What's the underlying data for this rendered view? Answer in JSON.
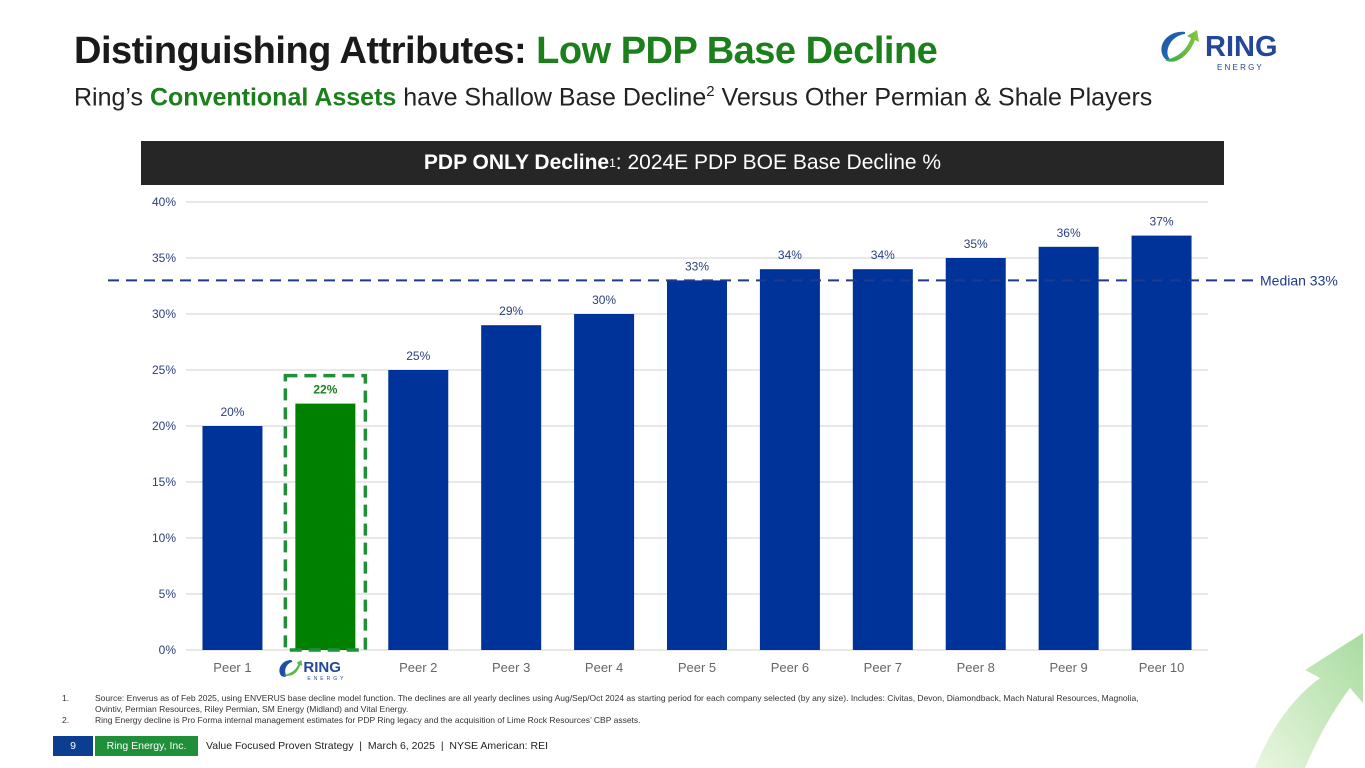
{
  "header": {
    "title_prefix": "Distinguishing Attributes: ",
    "title_accent": "Low PDP Base Decline",
    "subtitle_prefix": "Ring’s ",
    "subtitle_accent": "Conventional Assets",
    "subtitle_suffix": " have Shallow Base Decline",
    "subtitle_sup": "2",
    "subtitle_end": " Versus Other Permian & Shale Players",
    "logo": {
      "name": "RING",
      "tagline": "E N E R G Y"
    }
  },
  "chart_header": {
    "bold": "PDP ONLY Decline",
    "sup": "1",
    "rest": ": 2024E PDP BOE Base Decline %"
  },
  "chart_data": {
    "type": "bar",
    "title": "PDP ONLY Decline: 2024E PDP BOE Base Decline %",
    "categories": [
      "Peer 1",
      "Ring Energy",
      "Peer 2",
      "Peer 3",
      "Peer 4",
      "Peer 5",
      "Peer 6",
      "Peer 7",
      "Peer 8",
      "Peer 9",
      "Peer 10"
    ],
    "values": [
      20,
      22,
      25,
      29,
      30,
      33,
      34,
      34,
      35,
      36,
      37
    ],
    "data_labels": [
      "20%",
      "22%",
      "25%",
      "29%",
      "30%",
      "33%",
      "34%",
      "34%",
      "35%",
      "36%",
      "37%"
    ],
    "highlight_index": 1,
    "ylim": [
      0,
      40
    ],
    "yticks": [
      0,
      5,
      10,
      15,
      20,
      25,
      30,
      35,
      40
    ],
    "ytick_labels": [
      "0%",
      "5%",
      "10%",
      "15%",
      "20%",
      "25%",
      "30%",
      "35%",
      "40%"
    ],
    "xlabel": "",
    "ylabel": "",
    "grid": true,
    "reference_line": {
      "value": 33,
      "label": "Median 33%"
    },
    "colors": {
      "bar": "#003399",
      "highlight": "#008000",
      "median": "#1f3a8a",
      "label": "#2b3f7e"
    }
  },
  "footnotes": [
    {
      "num": "1.",
      "text": "Source: Enverus as of Feb 2025, using ENVERUS base decline model function. The declines are all yearly declines using Aug/Sep/Oct 2024 as starting period for each company selected (by any size). Includes: Civitas, Devon, Diamondback, Mach Natural Resources, Magnolia, Ovintiv, Permian Resources, Riley Permian, SM Energy (Midland) and Vital Energy."
    },
    {
      "num": "2.",
      "text": "Ring Energy decline is Pro Forma internal management estimates for PDP Ring legacy and the acquisition of Lime Rock Resources’ CBP assets."
    }
  ],
  "footer": {
    "page": "9",
    "company": "Ring Energy, Inc.",
    "tagline": "Value Focused Proven Strategy  |  March 6, 2025  |  NYSE American: REI"
  }
}
